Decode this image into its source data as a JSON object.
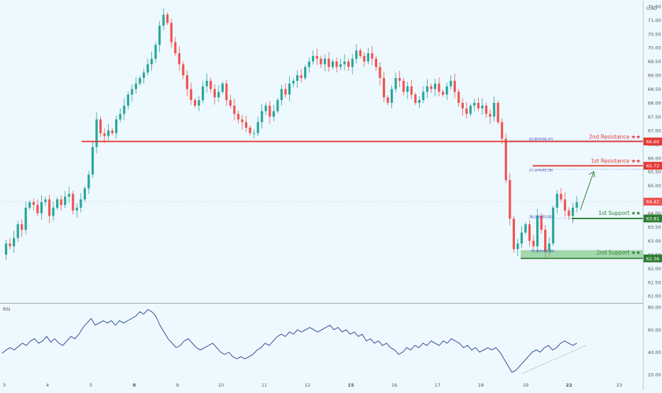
{
  "chart_data": [
    {
      "type": "candlestick",
      "currency": "USD",
      "ylim": [
        60.8,
        71.6
      ],
      "y_ticks": [
        "71.50",
        "71.00",
        "70.50",
        "70.00",
        "69.50",
        "69.00",
        "68.50",
        "68.00",
        "67.50",
        "67.00",
        "66.50",
        "66.00",
        "65.50",
        "65.00",
        "64.50",
        "64.00",
        "63.50",
        "63.00",
        "62.50",
        "62.00",
        "61.50",
        "61.00"
      ],
      "x_ticks": [
        "3",
        "4",
        "5",
        "8",
        "9",
        "10",
        "11",
        "12",
        "15",
        "16",
        "17",
        "18",
        "19",
        "22",
        "23"
      ],
      "close_path": [
        62.5,
        62.9,
        62.8,
        63.1,
        63.6,
        63.4,
        64.2,
        64.4,
        64.3,
        64.0,
        64.4,
        64.5,
        63.9,
        64.2,
        64.5,
        64.3,
        64.6,
        64.7,
        64.1,
        64.2,
        64.5,
        64.9,
        65.4,
        66.4,
        67.4,
        66.9,
        66.8,
        67.0,
        66.9,
        67.4,
        67.6,
        67.9,
        68.3,
        68.5,
        68.7,
        68.9,
        69.1,
        69.4,
        69.6,
        70.1,
        70.8,
        71.2,
        70.9,
        70.2,
        69.8,
        69.4,
        69.0,
        68.5,
        68.1,
        67.9,
        68.1,
        68.6,
        68.8,
        68.5,
        68.2,
        68.4,
        68.7,
        68.1,
        67.9,
        67.6,
        67.4,
        67.3,
        67.1,
        66.9,
        66.9,
        67.3,
        67.7,
        67.9,
        67.5,
        67.7,
        68.1,
        68.5,
        68.3,
        68.7,
        68.8,
        69.0,
        68.9,
        69.3,
        69.5,
        69.7,
        69.6,
        69.4,
        69.6,
        69.3,
        69.5,
        69.3,
        69.4,
        69.5,
        69.3,
        69.6,
        69.9,
        69.7,
        69.5,
        69.8,
        69.6,
        69.3,
        68.9,
        68.2,
        68.0,
        68.5,
        68.9,
        68.8,
        68.4,
        68.6,
        68.3,
        68.0,
        68.1,
        68.4,
        68.6,
        68.5,
        68.7,
        68.4,
        68.3,
        68.6,
        68.8,
        68.4,
        68.0,
        67.8,
        67.6,
        67.9,
        68.0,
        67.8,
        67.9,
        67.6,
        67.5,
        68.0,
        67.3,
        66.7,
        65.2,
        63.8,
        62.7,
        62.9,
        63.3,
        63.6,
        63.0,
        62.8,
        63.9,
        63.4,
        62.6,
        62.9,
        64.2,
        64.7,
        64.5,
        64.1,
        63.9,
        64.2,
        64.4
      ],
      "rsi": {
        "label": "RSI",
        "ylim": [
          15,
          82
        ],
        "y_ticks": [
          "80.00",
          "60.00",
          "40.00",
          "20.00"
        ],
        "values": [
          39,
          42,
          44,
          42,
          45,
          48,
          46,
          50,
          52,
          48,
          50,
          54,
          49,
          52,
          48,
          46,
          50,
          54,
          52,
          56,
          62,
          66,
          70,
          64,
          66,
          68,
          66,
          68,
          64,
          68,
          66,
          68,
          70,
          72,
          76,
          74,
          78,
          76,
          72,
          64,
          58,
          52,
          48,
          44,
          46,
          50,
          52,
          48,
          44,
          42,
          44,
          46,
          48,
          44,
          40,
          38,
          40,
          36,
          34,
          36,
          34,
          36,
          38,
          42,
          44,
          48,
          46,
          50,
          54,
          56,
          54,
          58,
          56,
          60,
          58,
          60,
          62,
          60,
          58,
          60,
          62,
          64,
          60,
          62,
          58,
          60,
          56,
          58,
          54,
          56,
          50,
          52,
          48,
          50,
          46,
          48,
          44,
          42,
          38,
          40,
          44,
          42,
          46,
          44,
          48,
          46,
          50,
          48,
          46,
          50,
          48,
          52,
          50,
          48,
          44,
          46,
          42,
          44,
          40,
          42,
          44,
          42,
          44,
          40,
          34,
          28,
          22,
          24,
          28,
          32,
          36,
          40,
          42,
          40,
          44,
          46,
          42,
          44,
          48,
          50,
          48,
          46,
          48
        ]
      }
    }
  ],
  "header": {
    "currency_label": "USD"
  },
  "annotations": {
    "second_resistance": {
      "label": "2nd Resistance ★★",
      "value": 66.6,
      "price_text": "66.60",
      "fib_text": "61.80%(66.47)"
    },
    "first_resistance": {
      "label": "1st Resistance ★★",
      "value": 65.72,
      "price_text": "65.72",
      "fib_text": "27.20%(65.59)"
    },
    "first_support": {
      "label": "1st Support ★★",
      "value": 63.81,
      "price_text": "63.81",
      "fib_text": "38.20%(63.82)"
    },
    "second_support": {
      "label": "2nd Support ★★",
      "value": 62.36,
      "zone_top": 62.66,
      "price_text": "62.36",
      "fib_text": "78.60%(62.39)"
    },
    "current_price": {
      "value": 64.42,
      "price_text": "64.42"
    }
  },
  "colors": {
    "bull": "#26a69a",
    "bear": "#ef5350",
    "resistance": "#e53935",
    "support": "#2e7d32",
    "support_zone": "#66bb6a",
    "rsi_line": "#1e3f8a",
    "current_price": "#ef5350",
    "background": "#eef8ff"
  }
}
